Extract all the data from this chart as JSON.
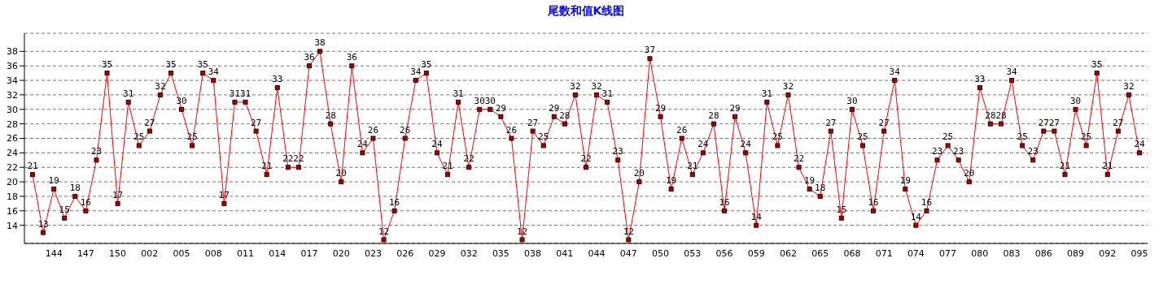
{
  "chart_data": {
    "type": "line",
    "title": "尾数和值K线图",
    "categories": [
      null,
      null,
      "144",
      null,
      null,
      "147",
      null,
      null,
      "150",
      null,
      null,
      "002",
      null,
      null,
      "005",
      null,
      null,
      "008",
      null,
      null,
      "011",
      null,
      null,
      "014",
      null,
      null,
      "017",
      null,
      null,
      "020",
      null,
      null,
      "023",
      null,
      null,
      "026",
      null,
      null,
      "029",
      null,
      null,
      "032",
      null,
      null,
      "035",
      null,
      null,
      "038",
      null,
      null,
      "041",
      null,
      null,
      "044",
      null,
      null,
      "047",
      null,
      null,
      "050",
      null,
      null,
      "053",
      null,
      null,
      "056",
      null,
      null,
      "059",
      null,
      null,
      "062",
      null,
      null,
      "065",
      null,
      null,
      "068",
      null,
      null,
      "071",
      null,
      null,
      "074",
      null,
      null,
      "077",
      null,
      null,
      "080",
      null,
      null,
      "083",
      null,
      null,
      "086",
      null,
      null,
      "089",
      null,
      null,
      "092",
      null,
      null,
      "095"
    ],
    "series": [
      {
        "color": "#ff0000",
        "values": [
          21,
          13,
          19,
          15,
          18,
          16,
          23,
          35,
          17,
          31,
          25,
          27,
          32,
          35,
          30,
          25,
          35,
          34,
          17,
          31,
          31,
          27,
          21,
          33,
          22,
          22,
          36,
          38,
          28,
          20,
          36,
          24,
          26,
          12,
          16,
          26,
          34,
          35,
          24,
          21,
          31,
          22,
          30,
          30,
          29,
          26,
          12,
          27,
          25,
          29,
          28,
          32,
          22,
          32,
          31,
          23,
          12,
          20,
          37,
          29,
          19,
          26,
          21,
          24,
          28,
          16,
          29,
          24,
          14,
          31,
          25,
          32,
          22,
          19,
          18,
          27,
          15,
          30,
          25,
          16,
          27,
          34,
          19,
          14,
          16,
          23,
          25,
          23,
          20,
          33,
          28,
          28,
          34,
          25,
          23,
          27,
          27,
          21,
          30,
          25,
          35,
          21,
          27,
          32,
          24
        ]
      }
    ],
    "ylim": [
      11.5,
      40.5
    ],
    "yticks": [
      14,
      16,
      18,
      20,
      22,
      24,
      26,
      28,
      30,
      32,
      34,
      36,
      38
    ],
    "grid": "y",
    "marker": "square",
    "line_style": "solid",
    "data_labels": true
  }
}
